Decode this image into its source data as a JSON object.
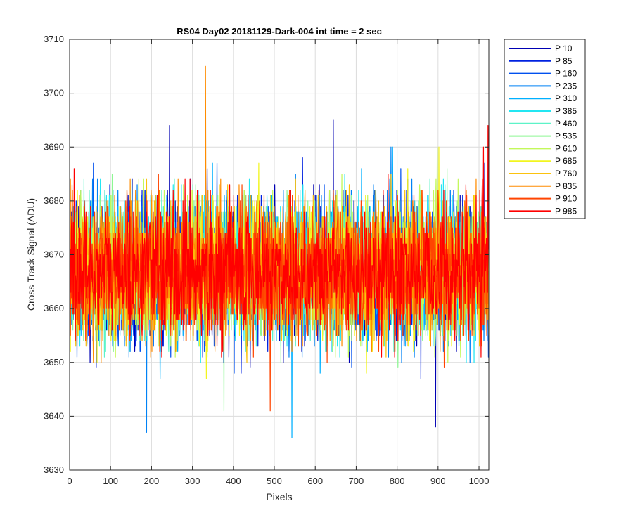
{
  "chart_data": {
    "type": "line",
    "title": "RS04 Day02 20181129-Dark-004 int time = 2 sec",
    "xlabel": "Pixels",
    "ylabel": "Cross Track Signal (ADU)",
    "xlim": [
      0,
      1024
    ],
    "ylim": [
      3630,
      3710
    ],
    "xticks": [
      0,
      100,
      200,
      300,
      400,
      500,
      600,
      700,
      800,
      900,
      1000
    ],
    "yticks": [
      3630,
      3640,
      3650,
      3660,
      3670,
      3680,
      3690,
      3700,
      3710
    ],
    "grid": true,
    "legend_position": "outside-top-right",
    "series_center": 3667,
    "series_noise_sd": 6,
    "series": [
      {
        "name": "P 10",
        "color": "#0000b3"
      },
      {
        "name": "P 85",
        "color": "#0022e0"
      },
      {
        "name": "P 160",
        "color": "#0050ef"
      },
      {
        "name": "P 235",
        "color": "#0082f5"
      },
      {
        "name": "P 310",
        "color": "#00b0ff"
      },
      {
        "name": "P 385",
        "color": "#23e6f2"
      },
      {
        "name": "P 460",
        "color": "#5cf3c8"
      },
      {
        "name": "P 535",
        "color": "#8df793"
      },
      {
        "name": "P 610",
        "color": "#c3f85a"
      },
      {
        "name": "P 685",
        "color": "#f2f51f"
      },
      {
        "name": "P 760",
        "color": "#fbc20e"
      },
      {
        "name": "P 835",
        "color": "#ff8c00"
      },
      {
        "name": "P 910",
        "color": "#ff4500"
      },
      {
        "name": "P 985",
        "color": "#ff0000"
      }
    ],
    "notable_points": [
      {
        "series": "P 835",
        "x": 331,
        "y": 3705
      },
      {
        "series": "P 310",
        "x": 542,
        "y": 3636
      },
      {
        "series": "P 235",
        "x": 187,
        "y": 3637
      },
      {
        "series": "P 10",
        "x": 893,
        "y": 3638
      },
      {
        "series": "P 10",
        "x": 643,
        "y": 3695
      },
      {
        "series": "P 10",
        "x": 243,
        "y": 3694
      },
      {
        "series": "P 985",
        "x": 1021,
        "y": 3694
      }
    ]
  }
}
